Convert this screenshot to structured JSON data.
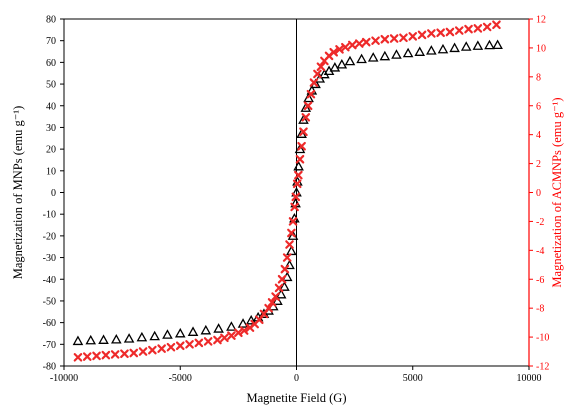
{
  "colors": {
    "left_axis": "#000000",
    "right_axis": "#ff0000",
    "series_mnp": "#000000",
    "series_acmnp": "#ee2a2a"
  },
  "chart_data": {
    "type": "scatter",
    "title": "",
    "grid": false,
    "legend": "none",
    "xlabel": "Magnetite Field (G)",
    "ylabel_left": "Magnetization of MNPs (emu g⁻¹)",
    "ylabel_right": "Magnetization of ACMNPs (emu g⁻¹)",
    "xlim": [
      -10000,
      10000
    ],
    "ylim_left": [
      -80,
      80
    ],
    "ylim_right": [
      -12,
      12
    ],
    "x_ticks": [
      "-10000",
      "-5000",
      "0",
      "5000",
      "10000"
    ],
    "y_left_ticks": [
      "80",
      "70",
      "60",
      "50",
      "40",
      "30",
      "20",
      "10",
      "0",
      "-10",
      "-20",
      "-30",
      "-40",
      "-50",
      "-60",
      "-70",
      "-80"
    ],
    "y_right_ticks": [
      "12",
      "10",
      "8",
      "6",
      "4",
      "2",
      "0",
      "-2",
      "-4",
      "-6",
      "-8",
      "-10",
      "-12"
    ],
    "series": [
      {
        "axis": "left",
        "marker": "triangle",
        "points": [
          [
            -9400,
            -68.5
          ],
          [
            -8850,
            -68.2
          ],
          [
            -8300,
            -68.0
          ],
          [
            -7750,
            -67.8
          ],
          [
            -7200,
            -67.4
          ],
          [
            -6650,
            -66.8
          ],
          [
            -6100,
            -66.3
          ],
          [
            -5550,
            -65.6
          ],
          [
            -5000,
            -65.0
          ],
          [
            -4450,
            -64.3
          ],
          [
            -3900,
            -63.6
          ],
          [
            -3350,
            -62.8
          ],
          [
            -2800,
            -61.9
          ],
          [
            -2300,
            -60.5
          ],
          [
            -1950,
            -59.0
          ],
          [
            -1650,
            -57.6
          ],
          [
            -1400,
            -56.0
          ],
          [
            -1200,
            -54.5
          ],
          [
            -1000,
            -52.5
          ],
          [
            -820,
            -50.0
          ],
          [
            -660,
            -47.0
          ],
          [
            -520,
            -43.5
          ],
          [
            -400,
            -39.0
          ],
          [
            -300,
            -33.5
          ],
          [
            -220,
            -27.0
          ],
          [
            -150,
            -20.0
          ],
          [
            -90,
            -12.0
          ],
          [
            -40,
            -5.0
          ],
          [
            0,
            0.0
          ],
          [
            40,
            5.0
          ],
          [
            90,
            12.0
          ],
          [
            150,
            20.0
          ],
          [
            220,
            27.0
          ],
          [
            300,
            33.5
          ],
          [
            400,
            39.0
          ],
          [
            520,
            43.5
          ],
          [
            660,
            47.0
          ],
          [
            820,
            50.0
          ],
          [
            1000,
            52.5
          ],
          [
            1200,
            54.5
          ],
          [
            1400,
            56.0
          ],
          [
            1650,
            57.6
          ],
          [
            1950,
            59.0
          ],
          [
            2300,
            60.5
          ],
          [
            2800,
            61.5
          ],
          [
            3300,
            62.2
          ],
          [
            3800,
            62.8
          ],
          [
            4300,
            63.5
          ],
          [
            4800,
            64.2
          ],
          [
            5300,
            64.8
          ],
          [
            5800,
            65.4
          ],
          [
            6300,
            66.0
          ],
          [
            6800,
            66.6
          ],
          [
            7300,
            67.2
          ],
          [
            7800,
            67.6
          ],
          [
            8300,
            67.9
          ],
          [
            8650,
            68.0
          ]
        ]
      },
      {
        "axis": "right",
        "marker": "x",
        "points": [
          [
            -9400,
            -11.4
          ],
          [
            -9000,
            -11.35
          ],
          [
            -8600,
            -11.3
          ],
          [
            -8200,
            -11.25
          ],
          [
            -7800,
            -11.2
          ],
          [
            -7400,
            -11.15
          ],
          [
            -7000,
            -11.1
          ],
          [
            -6600,
            -11.0
          ],
          [
            -6200,
            -10.9
          ],
          [
            -5800,
            -10.8
          ],
          [
            -5400,
            -10.7
          ],
          [
            -5000,
            -10.6
          ],
          [
            -4600,
            -10.5
          ],
          [
            -4200,
            -10.4
          ],
          [
            -3800,
            -10.3
          ],
          [
            -3400,
            -10.2
          ],
          [
            -3100,
            -10.05
          ],
          [
            -2800,
            -9.9
          ],
          [
            -2500,
            -9.7
          ],
          [
            -2250,
            -9.55
          ],
          [
            -2000,
            -9.35
          ],
          [
            -1800,
            -9.1
          ],
          [
            -1600,
            -8.8
          ],
          [
            -1400,
            -8.4
          ],
          [
            -1200,
            -8.0
          ],
          [
            -1050,
            -7.6
          ],
          [
            -900,
            -7.2
          ],
          [
            -750,
            -6.6
          ],
          [
            -620,
            -6.0
          ],
          [
            -500,
            -5.3
          ],
          [
            -400,
            -4.5
          ],
          [
            -300,
            -3.6
          ],
          [
            -220,
            -2.8
          ],
          [
            -150,
            -2.0
          ],
          [
            -80,
            -1.0
          ],
          [
            -30,
            -0.3
          ],
          [
            30,
            0.6
          ],
          [
            80,
            1.2
          ],
          [
            150,
            2.3
          ],
          [
            220,
            3.2
          ],
          [
            300,
            4.2
          ],
          [
            400,
            5.2
          ],
          [
            500,
            6.0
          ],
          [
            620,
            6.8
          ],
          [
            750,
            7.6
          ],
          [
            900,
            8.2
          ],
          [
            1050,
            8.7
          ],
          [
            1200,
            9.1
          ],
          [
            1400,
            9.45
          ],
          [
            1600,
            9.7
          ],
          [
            1850,
            9.9
          ],
          [
            2100,
            10.05
          ],
          [
            2400,
            10.2
          ],
          [
            2700,
            10.3
          ],
          [
            3000,
            10.4
          ],
          [
            3400,
            10.5
          ],
          [
            3800,
            10.6
          ],
          [
            4200,
            10.65
          ],
          [
            4600,
            10.7
          ],
          [
            5000,
            10.8
          ],
          [
            5400,
            10.9
          ],
          [
            5800,
            11.0
          ],
          [
            6200,
            11.05
          ],
          [
            6600,
            11.1
          ],
          [
            7000,
            11.2
          ],
          [
            7400,
            11.3
          ],
          [
            7800,
            11.35
          ],
          [
            8200,
            11.45
          ],
          [
            8600,
            11.6
          ]
        ]
      }
    ]
  }
}
